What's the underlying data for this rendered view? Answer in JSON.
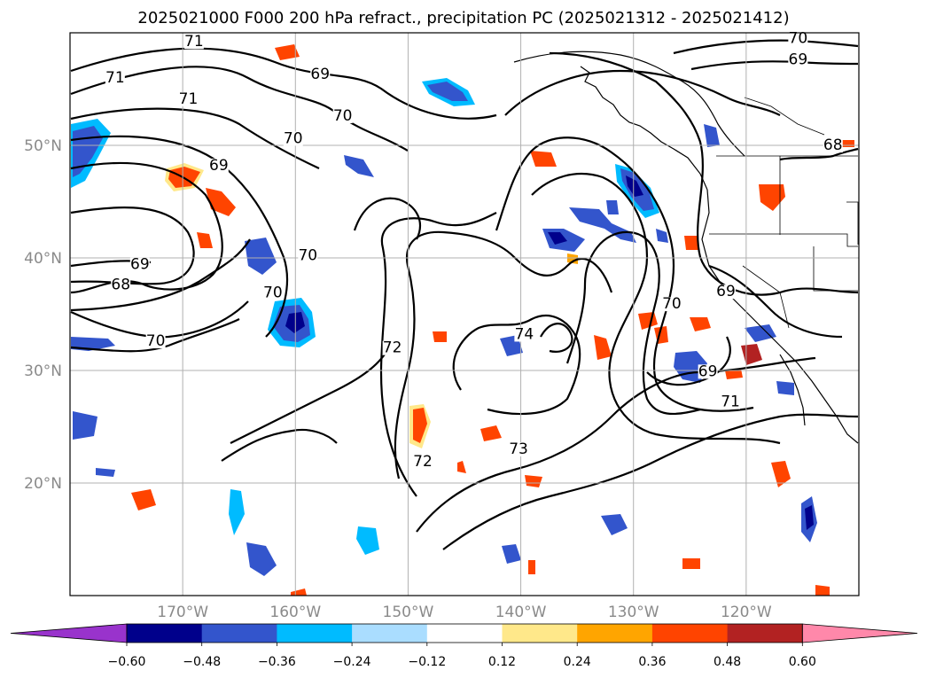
{
  "title": "2025021000 F000 200 hPa refract., precipitation PC (2025021312 - 2025021412)",
  "lat_ticks": [
    {
      "lat": 50,
      "label": "50°N"
    },
    {
      "lat": 40,
      "label": "40°N"
    },
    {
      "lat": 30,
      "label": "30°N"
    },
    {
      "lat": 20,
      "label": "20°N"
    }
  ],
  "lon_ticks": [
    {
      "lon": -170,
      "label": "170°W"
    },
    {
      "lon": -160,
      "label": "160°W"
    },
    {
      "lon": -150,
      "label": "150°W"
    },
    {
      "lon": -140,
      "label": "140°W"
    },
    {
      "lon": -130,
      "label": "130°W"
    },
    {
      "lon": -120,
      "label": "120°W"
    }
  ],
  "map_extent": {
    "lon_min": -180,
    "lon_max": -110,
    "lat_min": 10,
    "lat_max": 60
  },
  "colorbar": {
    "colors": [
      "#9933cc",
      "#00008b",
      "#3355cc",
      "#00bbff",
      "#aaddff",
      "#ffffff",
      "#ffe88a",
      "#ffa500",
      "#ff4400",
      "#b22222",
      "#ff88aa"
    ],
    "tick_labels": [
      "−0.60",
      "−0.48",
      "−0.36",
      "−0.24",
      "−0.12",
      "0.12",
      "0.24",
      "0.36",
      "0.48",
      "0.60"
    ],
    "extend": "both"
  },
  "contour_labels": [
    {
      "text": "71",
      "lon": -169,
      "lat": 58.8
    },
    {
      "text": "71",
      "lon": -176,
      "lat": 55.6
    },
    {
      "text": "71",
      "lon": -169.5,
      "lat": 53.7
    },
    {
      "text": "69",
      "lon": -157.8,
      "lat": 55.9
    },
    {
      "text": "70",
      "lon": -155.8,
      "lat": 52.2
    },
    {
      "text": "70",
      "lon": -160.2,
      "lat": 50.2
    },
    {
      "text": "69",
      "lon": -166.8,
      "lat": 47.8
    },
    {
      "text": "70",
      "lon": -158.9,
      "lat": 39.8
    },
    {
      "text": "69",
      "lon": -173.8,
      "lat": 39
    },
    {
      "text": "68",
      "lon": -175.5,
      "lat": 37.2
    },
    {
      "text": "70",
      "lon": -162,
      "lat": 36.5
    },
    {
      "text": "70",
      "lon": -172.4,
      "lat": 32.2
    },
    {
      "text": "72",
      "lon": -151.4,
      "lat": 31.6
    },
    {
      "text": "74",
      "lon": -139.7,
      "lat": 32.8
    },
    {
      "text": "72",
      "lon": -148.7,
      "lat": 21.5
    },
    {
      "text": "73",
      "lon": -140.2,
      "lat": 22.6
    },
    {
      "text": "70",
      "lon": -126.6,
      "lat": 35.5
    },
    {
      "text": "69",
      "lon": -121.8,
      "lat": 36.6
    },
    {
      "text": "69",
      "lon": -123.4,
      "lat": 29.5
    },
    {
      "text": "71",
      "lon": -121.4,
      "lat": 26.8
    },
    {
      "text": "70",
      "lon": -115.4,
      "lat": 59.1
    },
    {
      "text": "69",
      "lon": -115.4,
      "lat": 57.2
    },
    {
      "text": "68",
      "lon": -112.3,
      "lat": 49.6
    }
  ]
}
